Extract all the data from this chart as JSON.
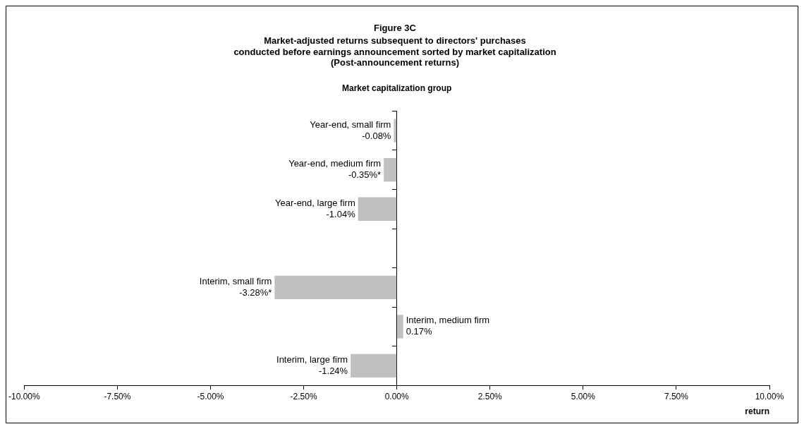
{
  "chart_data": {
    "type": "bar",
    "orientation": "horizontal",
    "title": "Figure 3C",
    "subtitle": "Market-adjusted returns subsequent to directors' purchases\nconducted before earnings announcement sorted by market capitalization\n(Post-announcement returns)",
    "ylabel": "Market capitalization group",
    "xlabel": "return",
    "categories": [
      "Year-end, small firm",
      "Year-end, medium firm",
      "Year-end, large firm",
      null,
      "Interim, small firm",
      "Interim, medium firm",
      "Interim, large firm"
    ],
    "values": [
      -0.08,
      -0.35,
      -1.04,
      null,
      -3.28,
      0.17,
      -1.24
    ],
    "value_labels": [
      "-0.08%",
      "-0.35%*",
      "-1.04%",
      null,
      "-3.28%*",
      "0.17%",
      "-1.24%"
    ],
    "color": "#c0c0c0",
    "xlim": [
      -10,
      10
    ],
    "xticks": [
      {
        "value": -10,
        "label": "-10.00%"
      },
      {
        "value": -7.5,
        "label": "-7.50%"
      },
      {
        "value": -5,
        "label": "-5.00%"
      },
      {
        "value": -2.5,
        "label": "-2.50%"
      },
      {
        "value": 0,
        "label": "0.00%"
      },
      {
        "value": 2.5,
        "label": "2.50%"
      },
      {
        "value": 5,
        "label": "5.00%"
      },
      {
        "value": 7.5,
        "label": "7.50%"
      },
      {
        "value": 10,
        "label": "10.00%"
      }
    ],
    "legend": false
  }
}
